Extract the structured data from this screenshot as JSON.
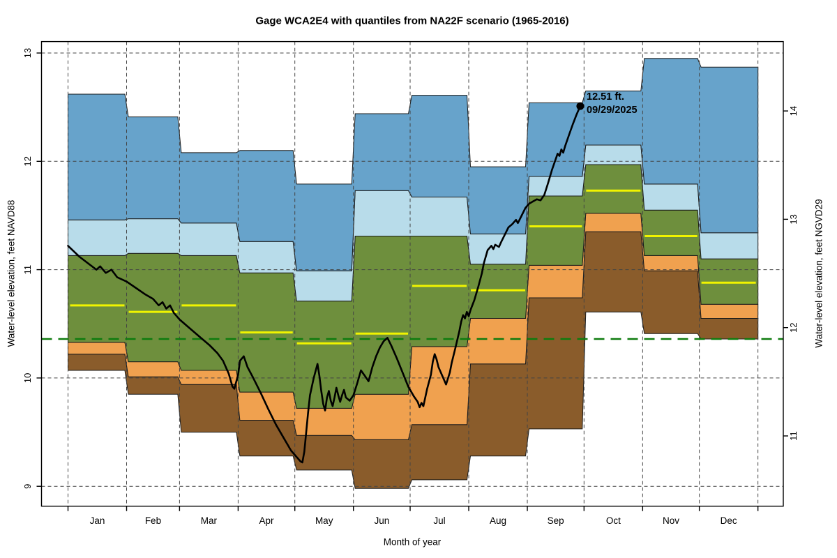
{
  "title": "Gage WCA2E4 with quantiles from NA22F scenario (1965-2016)",
  "axes": {
    "left": {
      "label": "Water-level elevation, feet NAVD88",
      "ticks": [
        9,
        10,
        11,
        12,
        13
      ]
    },
    "right": {
      "label": "Water-level elevation, feet NGVD29",
      "ticks": [
        11,
        12,
        13,
        14
      ],
      "offset_from_navd88": 1.535
    },
    "bottom": {
      "label": "Month of year"
    }
  },
  "annotation": {
    "line1": "12.51 ft.",
    "line2": "09/29/2025"
  },
  "chart_data": {
    "type": "area",
    "subtype": "monthly-quantile-bands-with-daily-trace",
    "title": "Gage WCA2E4 with quantiles from NA22F scenario (1965-2016)",
    "xlabel": "Month of year",
    "ylabel_left": "Water-level elevation, feet NAVD88",
    "ylabel_right": "Water-level elevation, feet NGVD29",
    "right_axis_offset": 1.535,
    "ylim": [
      8.82,
      13.1
    ],
    "grid": "dashed horizontal lines at 9-13 ft NAVD88 and dashed vertical lines at month boundaries, drawn over bands",
    "categories": [
      "Jan",
      "Feb",
      "Mar",
      "Apr",
      "May",
      "Jun",
      "Jul",
      "Aug",
      "Sep",
      "Oct",
      "Nov",
      "Dec"
    ],
    "month_days": [
      31,
      28,
      31,
      30,
      31,
      30,
      31,
      31,
      30,
      31,
      30,
      31
    ],
    "series": {
      "min": [
        10.07,
        9.85,
        9.5,
        9.28,
        9.15,
        8.98,
        9.06,
        9.28,
        9.53,
        10.61,
        10.41,
        10.36
      ],
      "p10": [
        10.22,
        10.01,
        9.94,
        9.61,
        9.47,
        9.43,
        9.57,
        10.13,
        10.74,
        11.35,
        10.99,
        10.55
      ],
      "p25": [
        10.33,
        10.15,
        10.07,
        9.87,
        9.72,
        9.85,
        10.29,
        10.55,
        11.04,
        11.52,
        11.13,
        10.68
      ],
      "p50_median": [
        10.67,
        10.61,
        10.67,
        10.42,
        10.32,
        10.41,
        10.85,
        10.81,
        11.4,
        11.73,
        11.31,
        10.88
      ],
      "p75": [
        11.13,
        11.15,
        11.13,
        10.97,
        10.71,
        11.31,
        11.31,
        11.05,
        11.68,
        11.97,
        11.55,
        11.1
      ],
      "p90": [
        11.46,
        11.47,
        11.43,
        11.26,
        10.99,
        11.73,
        11.67,
        11.33,
        11.86,
        12.15,
        11.79,
        11.34
      ],
      "max": [
        12.62,
        12.41,
        12.08,
        12.1,
        11.79,
        12.44,
        12.61,
        11.95,
        12.54,
        12.65,
        12.95,
        12.87
      ]
    },
    "bands": [
      {
        "from": "min",
        "to": "p10",
        "color": "#8A5C2B",
        "name": "minimum-to-10th-percentile"
      },
      {
        "from": "p10",
        "to": "p25",
        "color": "#F0A14F",
        "name": "10th-to-25th-percentile"
      },
      {
        "from": "p25",
        "to": "p75",
        "color": "#6E8F3D",
        "name": "25th-to-75th-percentile"
      },
      {
        "from": "p75",
        "to": "p90",
        "color": "#B8DCEA",
        "name": "75th-to-90th-percentile"
      },
      {
        "from": "p90",
        "to": "max",
        "color": "#67A3CB",
        "name": "90th-percentile-to-maximum"
      }
    ],
    "median_line_color": "#F0F400",
    "reference_line": {
      "value": 10.36,
      "color": "#0E7B0E",
      "style": "dashed"
    },
    "colors": {
      "grid": "#444444",
      "band_outline": "#1b1b1b",
      "trace": "#000000",
      "box": "#000000"
    },
    "trace": {
      "name": "observed water level through 09/29/2025",
      "color": "#000000",
      "end_point": {
        "day_of_year": 271,
        "value": 12.51,
        "label": "12.51 ft.",
        "date": "09/29/2025"
      },
      "points": [
        [
          0,
          11.22
        ],
        [
          6,
          11.12
        ],
        [
          12,
          11.04
        ],
        [
          15,
          11.0
        ],
        [
          17,
          11.03
        ],
        [
          20,
          10.97
        ],
        [
          23,
          11.0
        ],
        [
          26,
          10.93
        ],
        [
          31,
          10.89
        ],
        [
          36,
          10.83
        ],
        [
          41,
          10.77
        ],
        [
          45,
          10.73
        ],
        [
          48,
          10.67
        ],
        [
          50,
          10.7
        ],
        [
          52,
          10.64
        ],
        [
          54,
          10.67
        ],
        [
          56,
          10.6
        ],
        [
          59,
          10.54
        ],
        [
          63,
          10.48
        ],
        [
          67,
          10.42
        ],
        [
          71,
          10.36
        ],
        [
          75,
          10.3
        ],
        [
          79,
          10.23
        ],
        [
          82,
          10.16
        ],
        [
          85,
          10.04
        ],
        [
          87,
          9.92
        ],
        [
          88,
          9.9
        ],
        [
          90,
          10.03
        ],
        [
          91,
          10.16
        ],
        [
          93,
          10.2
        ],
        [
          95,
          10.1
        ],
        [
          98,
          10.0
        ],
        [
          102,
          9.86
        ],
        [
          106,
          9.71
        ],
        [
          110,
          9.57
        ],
        [
          114,
          9.45
        ],
        [
          118,
          9.33
        ],
        [
          121,
          9.27
        ],
        [
          123,
          9.23
        ],
        [
          124,
          9.22
        ],
        [
          125,
          9.32
        ],
        [
          126,
          9.5
        ],
        [
          127,
          9.68
        ],
        [
          128,
          9.84
        ],
        [
          130,
          10.0
        ],
        [
          132,
          10.13
        ],
        [
          133,
          10.02
        ],
        [
          134,
          9.88
        ],
        [
          135,
          9.76
        ],
        [
          136,
          9.7
        ],
        [
          137,
          9.82
        ],
        [
          138,
          9.88
        ],
        [
          139,
          9.79
        ],
        [
          140,
          9.74
        ],
        [
          141,
          9.82
        ],
        [
          142,
          9.91
        ],
        [
          143,
          9.84
        ],
        [
          144,
          9.78
        ],
        [
          145,
          9.84
        ],
        [
          146,
          9.89
        ],
        [
          147,
          9.82
        ],
        [
          149,
          9.79
        ],
        [
          151,
          9.84
        ],
        [
          153,
          9.95
        ],
        [
          155,
          10.07
        ],
        [
          157,
          10.02
        ],
        [
          159,
          9.97
        ],
        [
          161,
          10.1
        ],
        [
          163,
          10.2
        ],
        [
          165,
          10.28
        ],
        [
          167,
          10.34
        ],
        [
          169,
          10.37
        ],
        [
          171,
          10.3
        ],
        [
          174,
          10.18
        ],
        [
          177,
          10.05
        ],
        [
          180,
          9.92
        ],
        [
          183,
          9.83
        ],
        [
          185,
          9.78
        ],
        [
          186,
          9.73
        ],
        [
          187,
          9.77
        ],
        [
          188,
          9.74
        ],
        [
          190,
          9.9
        ],
        [
          192,
          10.03
        ],
        [
          193,
          10.15
        ],
        [
          194,
          10.22
        ],
        [
          195,
          10.17
        ],
        [
          196,
          10.1
        ],
        [
          198,
          10.02
        ],
        [
          200,
          9.94
        ],
        [
          202,
          10.05
        ],
        [
          203,
          10.14
        ],
        [
          205,
          10.28
        ],
        [
          207,
          10.43
        ],
        [
          208,
          10.52
        ],
        [
          209,
          10.58
        ],
        [
          210,
          10.55
        ],
        [
          211,
          10.61
        ],
        [
          212,
          10.57
        ],
        [
          213,
          10.63
        ],
        [
          215,
          10.72
        ],
        [
          217,
          10.84
        ],
        [
          219,
          10.97
        ],
        [
          220,
          11.06
        ],
        [
          221,
          11.12
        ],
        [
          222,
          11.18
        ],
        [
          224,
          11.22
        ],
        [
          225,
          11.19
        ],
        [
          226,
          11.23
        ],
        [
          228,
          11.21
        ],
        [
          229,
          11.25
        ],
        [
          231,
          11.32
        ],
        [
          233,
          11.39
        ],
        [
          235,
          11.42
        ],
        [
          237,
          11.46
        ],
        [
          238,
          11.43
        ],
        [
          240,
          11.5
        ],
        [
          242,
          11.57
        ],
        [
          244,
          11.61
        ],
        [
          246,
          11.63
        ],
        [
          248,
          11.65
        ],
        [
          250,
          11.64
        ],
        [
          252,
          11.69
        ],
        [
          254,
          11.8
        ],
        [
          256,
          11.92
        ],
        [
          258,
          12.02
        ],
        [
          259,
          12.07
        ],
        [
          260,
          12.05
        ],
        [
          261,
          12.11
        ],
        [
          262,
          12.08
        ],
        [
          263,
          12.14
        ],
        [
          265,
          12.24
        ],
        [
          267,
          12.34
        ],
        [
          269,
          12.43
        ],
        [
          271,
          12.51
        ]
      ]
    }
  }
}
